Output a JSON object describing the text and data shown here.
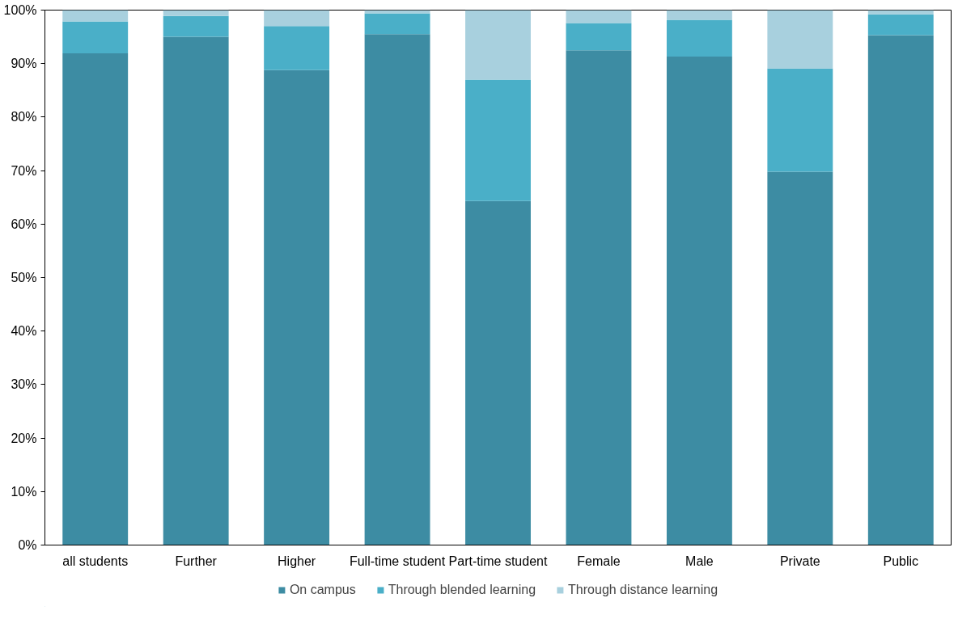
{
  "chart_data": {
    "type": "bar",
    "stacked": true,
    "categories": [
      "all students",
      "Further",
      "Higher",
      "Full-time student",
      "Part-time student",
      "Female",
      "Male",
      "Private",
      "Public"
    ],
    "series": [
      {
        "name": "On campus",
        "color": "#3d8ca3",
        "values": [
          91.9,
          95.0,
          88.8,
          95.5,
          64.3,
          92.5,
          91.3,
          69.8,
          95.3
        ]
      },
      {
        "name": "Through blended learning",
        "color": "#4aafc8",
        "values": [
          6.0,
          3.9,
          8.2,
          3.9,
          22.7,
          5.1,
          6.9,
          19.3,
          3.9
        ]
      },
      {
        "name": "Through distance learning",
        "color": "#a8d0de",
        "values": [
          2.1,
          1.1,
          3.0,
          0.6,
          13.0,
          2.4,
          1.8,
          10.9,
          0.8
        ]
      }
    ],
    "ylim": [
      0,
      100
    ],
    "yticks": [
      {
        "value": 0,
        "label": "0%"
      },
      {
        "value": 10,
        "label": "10%"
      },
      {
        "value": 20,
        "label": "20%"
      },
      {
        "value": 30,
        "label": "30%"
      },
      {
        "value": 40,
        "label": "40%"
      },
      {
        "value": 50,
        "label": "50%"
      },
      {
        "value": 60,
        "label": "60%"
      },
      {
        "value": 70,
        "label": "70%"
      },
      {
        "value": 80,
        "label": "80%"
      },
      {
        "value": 90,
        "label": "90%"
      },
      {
        "value": 100,
        "label": "100%"
      }
    ],
    "grid": false,
    "legend": "bottom"
  }
}
